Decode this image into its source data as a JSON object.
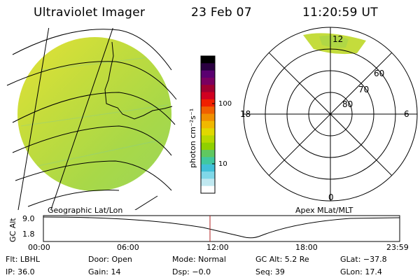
{
  "header": {
    "instrument": "Ultraviolet Imager",
    "date": "23 Feb 07",
    "time": "11:20:59 UT"
  },
  "colorbar": {
    "unit_label": "photon cm⁻²s⁻¹",
    "tick_labels": [
      "100",
      "10"
    ],
    "colors": [
      "#000000",
      "#2a0040",
      "#5a0070",
      "#7a0060",
      "#a00030",
      "#d00020",
      "#f02000",
      "#f06000",
      "#f09000",
      "#f0b800",
      "#e0d800",
      "#b8d800",
      "#90d000",
      "#60c860",
      "#40c8a0",
      "#40c0d8",
      "#80d8e8",
      "#c0e8f0",
      "#ffffff"
    ]
  },
  "map_labels": {
    "geographic": "Geographic Lat/Lon",
    "apex": "Apex MLat/MLT"
  },
  "polar_plot": {
    "mlt_labels": {
      "top": "12",
      "left": "18",
      "right": "6",
      "bottom": "0"
    },
    "lat_labels": [
      "60",
      "70",
      "80"
    ]
  },
  "altitude_plot": {
    "ylabel": "GC Alt",
    "yticks": [
      "9.0",
      "1.8"
    ],
    "xticks": [
      "00:00",
      "06:00",
      "12:00",
      "18:00",
      "23:59"
    ]
  },
  "info": {
    "filter": "Flt: LBHL",
    "door": "Door: Open",
    "mode": "Mode: Normal",
    "gc_alt": "GC Alt: 5.2 Re",
    "glat": "GLat: −37.8",
    "ip": "IP: 36.0",
    "gain": "Gain: 14",
    "dsp": "Dsp:  −0.0",
    "seq": "Seq: 39",
    "glon": "GLon:  17.4"
  }
}
